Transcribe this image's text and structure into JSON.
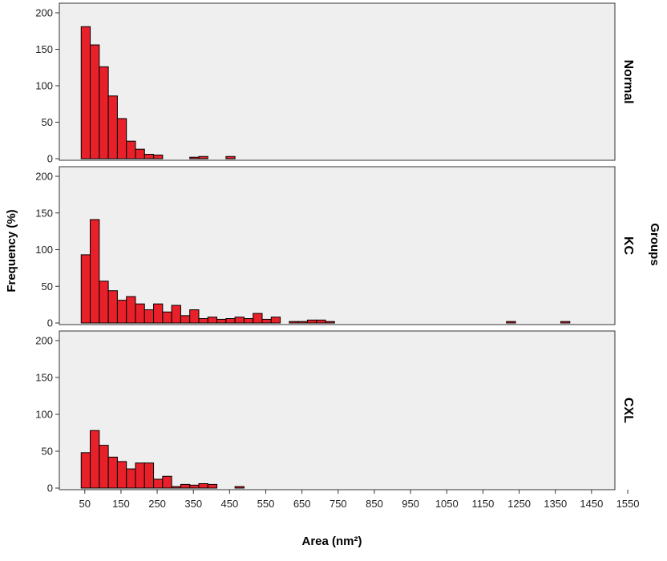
{
  "chart_data": {
    "type": "bar",
    "title": "",
    "xlabel": "Area (nm²)",
    "ylabel": "Frequency (%)",
    "facet_label": "Groups",
    "bin_width": 25,
    "x_start": 40,
    "xlim": [
      0,
      1580
    ],
    "ylim": [
      0,
      200
    ],
    "y_ticks": [
      0,
      50,
      100,
      150,
      200
    ],
    "x_ticks": [
      50,
      150,
      250,
      350,
      450,
      550,
      650,
      750,
      850,
      950,
      1050,
      1150,
      1250,
      1350,
      1450,
      1550
    ],
    "colors": {
      "bar_fill": "#e8202a",
      "bar_stroke": "#000000",
      "panel_bg": "#efefef"
    },
    "panels": [
      {
        "name": "Normal",
        "bars": [
          {
            "x": 40,
            "y": 181
          },
          {
            "x": 65,
            "y": 156
          },
          {
            "x": 90,
            "y": 126
          },
          {
            "x": 115,
            "y": 86
          },
          {
            "x": 140,
            "y": 55
          },
          {
            "x": 165,
            "y": 24
          },
          {
            "x": 190,
            "y": 13
          },
          {
            "x": 215,
            "y": 6
          },
          {
            "x": 240,
            "y": 5
          },
          {
            "x": 340,
            "y": 2
          },
          {
            "x": 365,
            "y": 3
          },
          {
            "x": 440,
            "y": 3
          }
        ]
      },
      {
        "name": "KC",
        "bars": [
          {
            "x": 40,
            "y": 93
          },
          {
            "x": 65,
            "y": 141
          },
          {
            "x": 90,
            "y": 57
          },
          {
            "x": 115,
            "y": 44
          },
          {
            "x": 140,
            "y": 31
          },
          {
            "x": 165,
            "y": 36
          },
          {
            "x": 190,
            "y": 26
          },
          {
            "x": 215,
            "y": 18
          },
          {
            "x": 240,
            "y": 26
          },
          {
            "x": 265,
            "y": 15
          },
          {
            "x": 290,
            "y": 24
          },
          {
            "x": 315,
            "y": 10
          },
          {
            "x": 340,
            "y": 18
          },
          {
            "x": 365,
            "y": 6
          },
          {
            "x": 390,
            "y": 8
          },
          {
            "x": 415,
            "y": 5
          },
          {
            "x": 440,
            "y": 6
          },
          {
            "x": 465,
            "y": 8
          },
          {
            "x": 490,
            "y": 6
          },
          {
            "x": 515,
            "y": 13
          },
          {
            "x": 540,
            "y": 5
          },
          {
            "x": 565,
            "y": 8
          },
          {
            "x": 615,
            "y": 2
          },
          {
            "x": 640,
            "y": 2
          },
          {
            "x": 665,
            "y": 4
          },
          {
            "x": 690,
            "y": 4
          },
          {
            "x": 715,
            "y": 2
          },
          {
            "x": 1215,
            "y": 2
          },
          {
            "x": 1365,
            "y": 2
          }
        ]
      },
      {
        "name": "CXL",
        "bars": [
          {
            "x": 40,
            "y": 48
          },
          {
            "x": 65,
            "y": 78
          },
          {
            "x": 90,
            "y": 58
          },
          {
            "x": 115,
            "y": 42
          },
          {
            "x": 140,
            "y": 36
          },
          {
            "x": 165,
            "y": 26
          },
          {
            "x": 190,
            "y": 34
          },
          {
            "x": 215,
            "y": 34
          },
          {
            "x": 240,
            "y": 12
          },
          {
            "x": 265,
            "y": 16
          },
          {
            "x": 290,
            "y": 2
          },
          {
            "x": 315,
            "y": 5
          },
          {
            "x": 340,
            "y": 4
          },
          {
            "x": 365,
            "y": 6
          },
          {
            "x": 390,
            "y": 5
          },
          {
            "x": 465,
            "y": 2
          }
        ]
      }
    ]
  }
}
